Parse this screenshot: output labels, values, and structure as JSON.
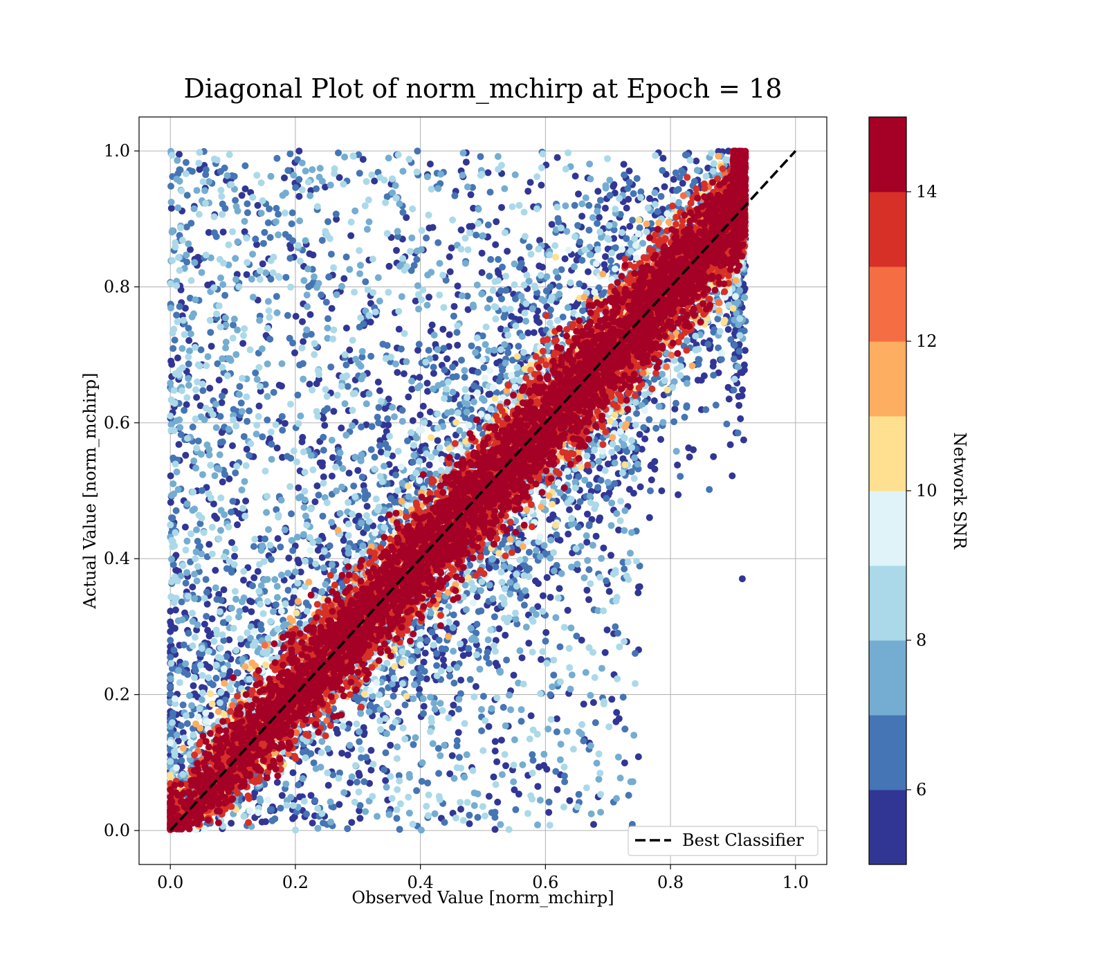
{
  "chart_data": {
    "type": "scatter",
    "title": "Diagonal Plot of norm_mchirp at Epoch = 18",
    "xlabel": "Observed Value [norm_mchirp]",
    "ylabel": "Actual Value [norm_mchirp]",
    "xlim": [
      -0.05,
      1.05
    ],
    "ylim": [
      -0.05,
      1.05
    ],
    "xticks": [
      0.0,
      0.2,
      0.4,
      0.6,
      0.8,
      1.0
    ],
    "yticks": [
      0.0,
      0.2,
      0.4,
      0.6,
      0.8,
      1.0
    ],
    "xtick_labels": [
      "0.0",
      "0.2",
      "0.4",
      "0.6",
      "0.8",
      "1.0"
    ],
    "ytick_labels": [
      "0.0",
      "0.2",
      "0.4",
      "0.6",
      "0.8",
      "1.0"
    ],
    "grid": true,
    "colorbar": {
      "label": "Network SNR",
      "range": [
        5,
        15
      ],
      "ticks": [
        6,
        8,
        10,
        12,
        14
      ],
      "tick_labels": [
        "6",
        "8",
        "10",
        "12",
        "14"
      ],
      "bins": [
        {
          "from": 5,
          "to": 6,
          "color": "#313695"
        },
        {
          "from": 6,
          "to": 7,
          "color": "#4575b4"
        },
        {
          "from": 7,
          "to": 8,
          "color": "#74add1"
        },
        {
          "from": 8,
          "to": 9,
          "color": "#abd9e9"
        },
        {
          "from": 9,
          "to": 10,
          "color": "#e0f3f8"
        },
        {
          "from": 10,
          "to": 11,
          "color": "#fee090"
        },
        {
          "from": 11,
          "to": 12,
          "color": "#fdae61"
        },
        {
          "from": 12,
          "to": 13,
          "color": "#f46d43"
        },
        {
          "from": 13,
          "to": 14,
          "color": "#d73027"
        },
        {
          "from": 14,
          "to": 15,
          "color": "#a50026"
        }
      ]
    },
    "series": [
      {
        "name": "Best Classifier",
        "kind": "line",
        "style": "dashed",
        "color": "#000000",
        "x": [
          0.0,
          1.0
        ],
        "y": [
          0.0,
          1.0
        ]
      }
    ],
    "legend": {
      "position": "lower-right"
    },
    "observations": {
      "x_range": [
        0.0,
        0.92
      ],
      "y_range": [
        0.0,
        1.0
      ],
      "density": "highest along the diagonal; low-SNR points spread far from it"
    }
  }
}
